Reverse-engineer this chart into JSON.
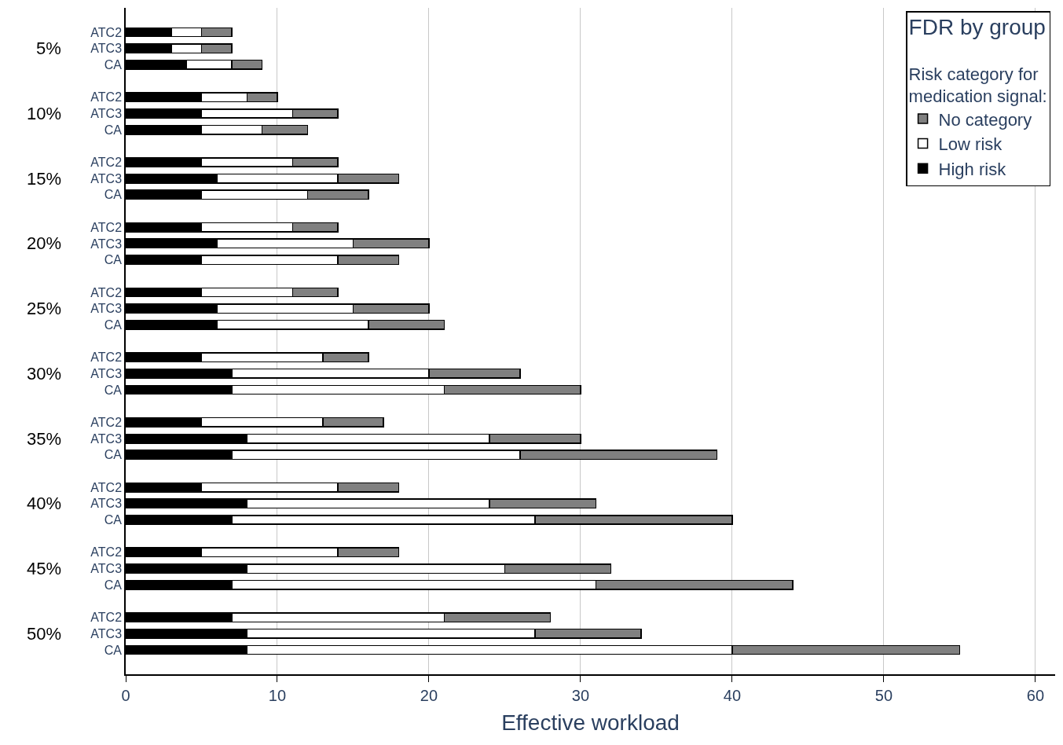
{
  "chart_data": {
    "type": "bar",
    "orientation": "horizontal",
    "stacked": true,
    "xlabel": "Effective workload",
    "legend_title": "FDR by group\nRisk category for\nmedication signal:",
    "categories": [
      "ATC2",
      "ATC3",
      "CA",
      "ATC2",
      "ATC3",
      "CA",
      "ATC2",
      "ATC3",
      "CA",
      "ATC2",
      "ATC3",
      "CA",
      "ATC2",
      "ATC3",
      "CA",
      "ATC2",
      "ATC3",
      "CA",
      "ATC2",
      "ATC3",
      "CA",
      "ATC2",
      "ATC3",
      "CA",
      "ATC2",
      "ATC3",
      "CA",
      "ATC2",
      "ATC3",
      "CA"
    ],
    "annotations": [
      "5%",
      "10%",
      "15%",
      "20%",
      "25%",
      "30%",
      "35%",
      "40%",
      "45%",
      "50%"
    ],
    "series": [
      {
        "name": "High risk",
        "color": "#000000",
        "values": [
          3,
          3,
          4,
          5,
          5,
          5,
          5,
          6,
          5,
          5,
          6,
          5,
          5,
          6,
          6,
          5,
          7,
          7,
          5,
          8,
          7,
          5,
          8,
          7,
          5,
          8,
          7,
          7,
          8,
          8
        ]
      },
      {
        "name": "Low risk",
        "color": "#ffffff",
        "values": [
          2,
          2,
          3,
          3,
          6,
          4,
          6,
          8,
          7,
          6,
          9,
          9,
          6,
          9,
          10,
          8,
          13,
          14,
          8,
          16,
          19,
          9,
          16,
          20,
          9,
          17,
          24,
          14,
          19,
          32
        ]
      },
      {
        "name": "No category",
        "color": "#808080",
        "values": [
          2,
          2,
          2,
          2,
          3,
          3,
          3,
          4,
          4,
          3,
          5,
          4,
          3,
          5,
          5,
          3,
          6,
          9,
          4,
          6,
          13,
          4,
          7,
          13,
          4,
          7,
          13,
          7,
          7,
          15
        ]
      }
    ],
    "xlim": [
      0,
      61.3
    ],
    "xticks": [
      0,
      10,
      20,
      30,
      40,
      50,
      60
    ],
    "grid": "x",
    "legend": "top right"
  }
}
